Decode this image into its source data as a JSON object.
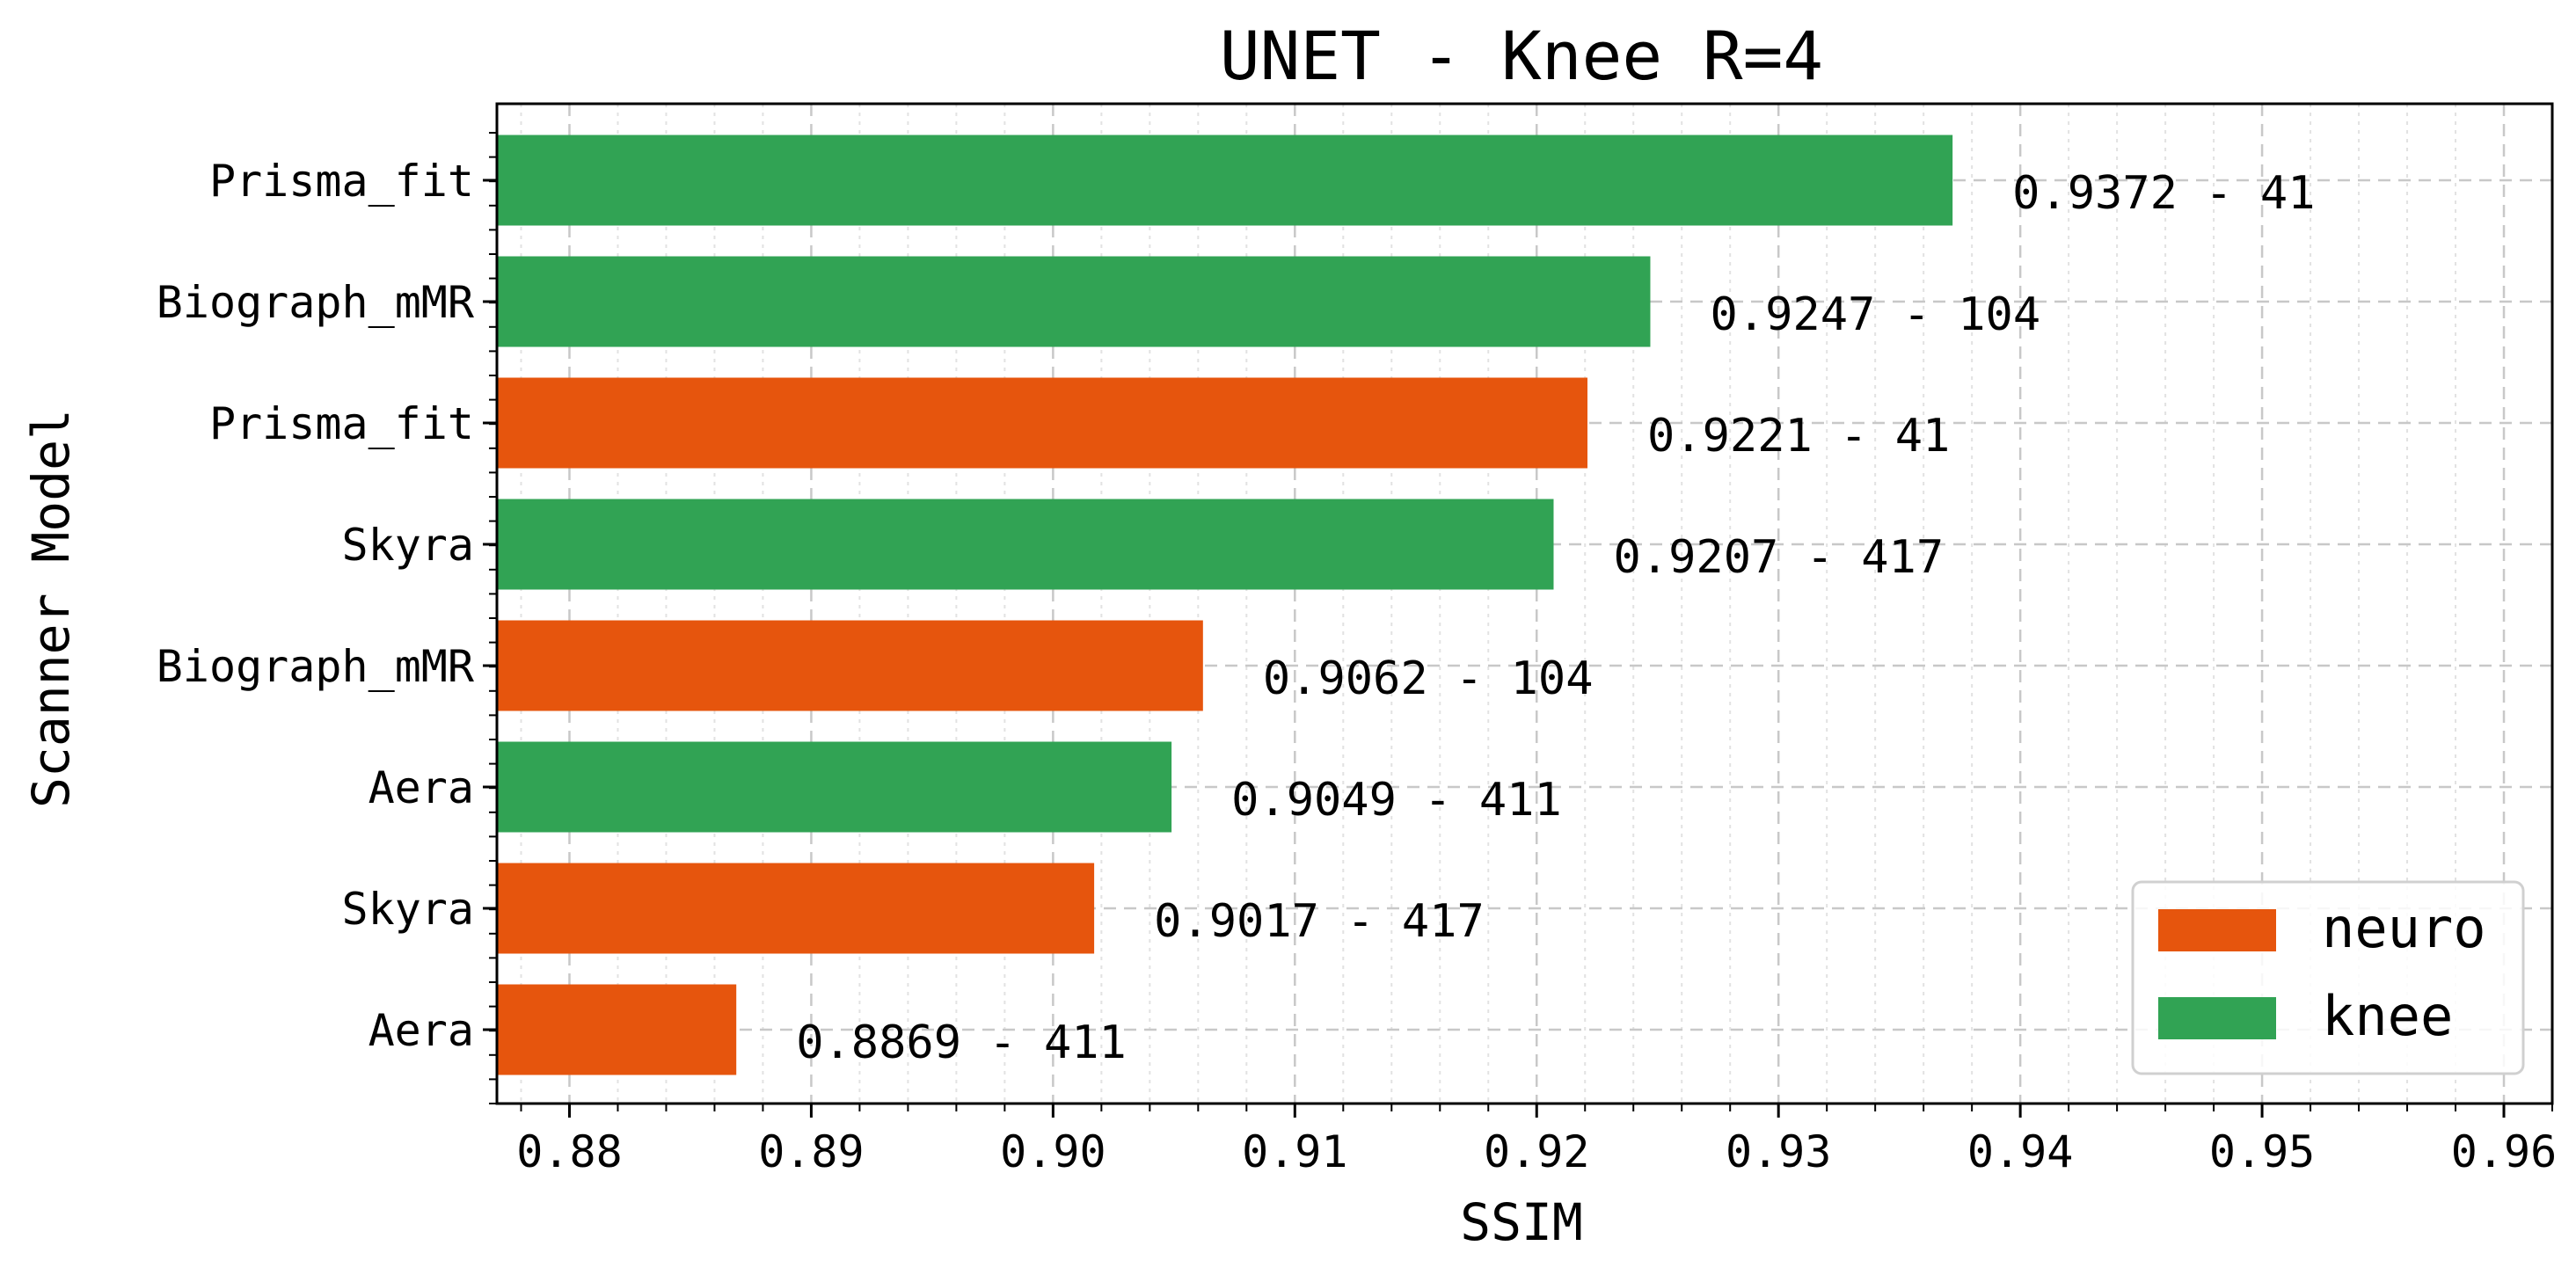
{
  "chart_data": {
    "type": "bar",
    "orientation": "horizontal",
    "title": "UNET - Knee R=4",
    "xlabel": "SSIM",
    "ylabel": "Scanner Model",
    "xlim": [
      0.877,
      0.962
    ],
    "xticks": [
      "0.88",
      "0.89",
      "0.90",
      "0.91",
      "0.92",
      "0.93",
      "0.94",
      "0.95",
      "0.96"
    ],
    "grid": true,
    "legend_position": "bottom-right",
    "series": [
      {
        "name": "neuro",
        "color": "#e6550d"
      },
      {
        "name": "knee",
        "color": "#31a354"
      }
    ],
    "bars": [
      {
        "category": "Prisma_fit",
        "series": "knee",
        "value": 0.9372,
        "label": "0.9372 - 41"
      },
      {
        "category": "Biograph_mMR",
        "series": "knee",
        "value": 0.9247,
        "label": "0.9247 - 104"
      },
      {
        "category": "Prisma_fit",
        "series": "neuro",
        "value": 0.9221,
        "label": "0.9221 - 41"
      },
      {
        "category": "Skyra",
        "series": "knee",
        "value": 0.9207,
        "label": "0.9207 - 417"
      },
      {
        "category": "Biograph_mMR",
        "series": "neuro",
        "value": 0.9062,
        "label": "0.9062 - 104"
      },
      {
        "category": "Aera",
        "series": "knee",
        "value": 0.9049,
        "label": "0.9049 - 411"
      },
      {
        "category": "Skyra",
        "series": "neuro",
        "value": 0.9017,
        "label": "0.9017 - 417"
      },
      {
        "category": "Aera",
        "series": "neuro",
        "value": 0.8869,
        "label": "0.8869 - 411"
      }
    ]
  }
}
